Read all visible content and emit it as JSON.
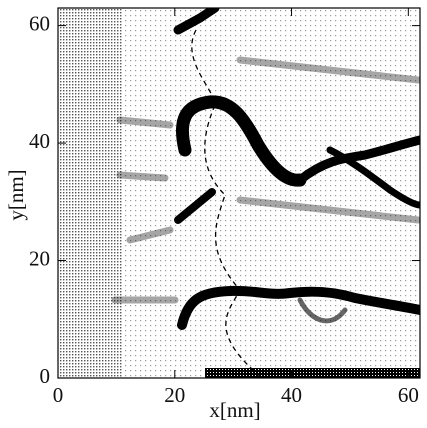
{
  "chart_data": {
    "type": "heatmap",
    "xlabel": "x[nm]",
    "ylabel": "y[nm]",
    "xlim": [
      0,
      62
    ],
    "ylim": [
      0,
      63
    ],
    "xticks": [
      0,
      20,
      40,
      60
    ],
    "yticks": [
      0,
      20,
      40,
      60
    ]
  }
}
